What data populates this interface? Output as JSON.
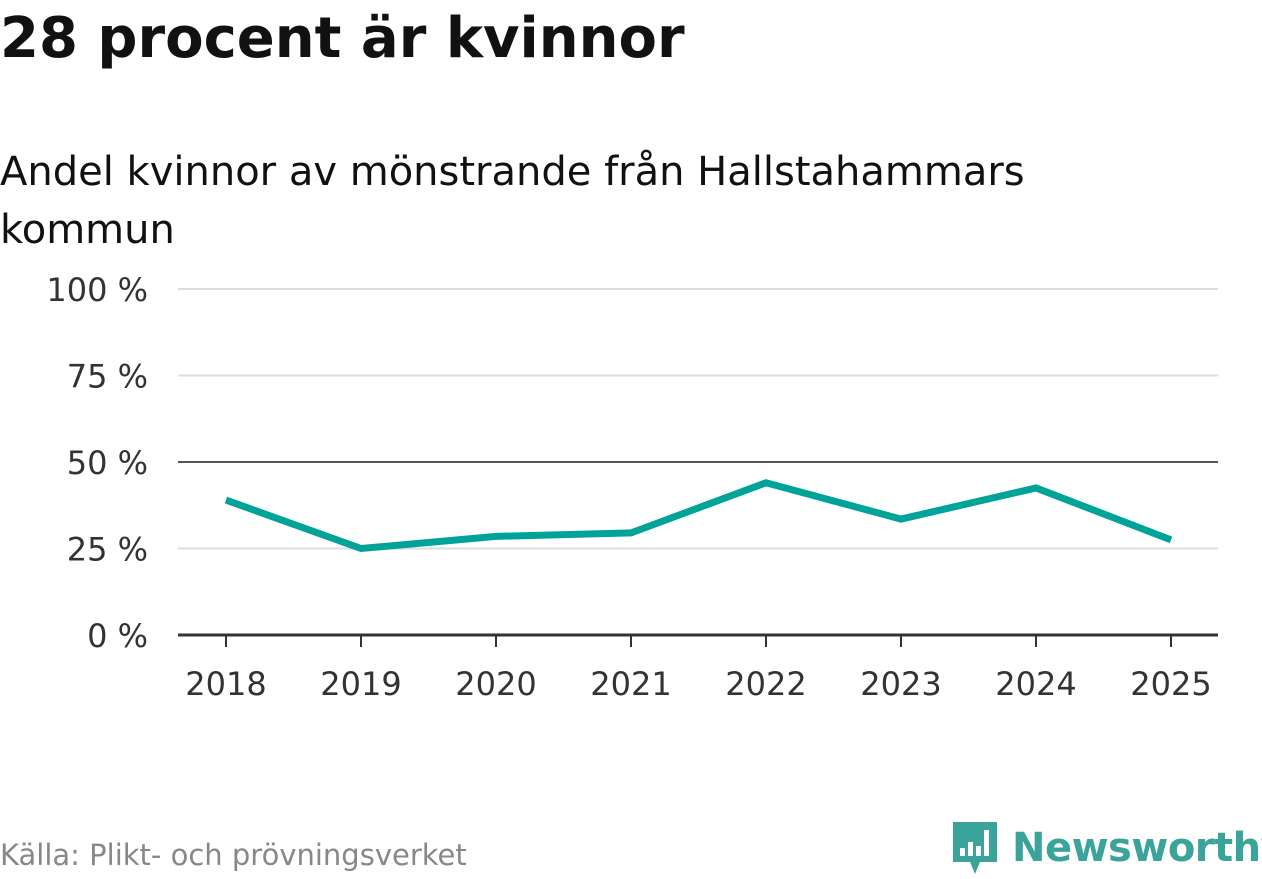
{
  "title": "28 procent är kvinnor",
  "subtitle": "Andel kvinnor av mönstrande från Hallstahammars kommun",
  "source": "Källa: Plikt- och prövningsverket",
  "brand": {
    "name": "Newsworthy",
    "icon": "newsworthy-logo-icon",
    "color": "#3aa39a"
  },
  "colors": {
    "line": "#00a398",
    "grid": "#dddddd",
    "reference": "#555555",
    "axis": "#333333"
  },
  "chart_data": {
    "type": "line",
    "title": "28 procent är kvinnor",
    "subtitle": "Andel kvinnor av mönstrande från Hallstahammars kommun",
    "xlabel": "",
    "ylabel": "",
    "categories": [
      "2018",
      "2019",
      "2020",
      "2021",
      "2022",
      "2023",
      "2024",
      "2025"
    ],
    "series": [
      {
        "name": "Andel kvinnor",
        "values": [
          39,
          25,
          28.5,
          29.5,
          44,
          33.5,
          42.5,
          27.5
        ]
      }
    ],
    "ylim": [
      0,
      100
    ],
    "yticks": [
      0,
      25,
      50,
      75,
      100
    ],
    "ytick_labels": [
      "0 %",
      "25 %",
      "50 %",
      "75 %",
      "100 %"
    ],
    "reference_line": 50,
    "grid": true
  }
}
